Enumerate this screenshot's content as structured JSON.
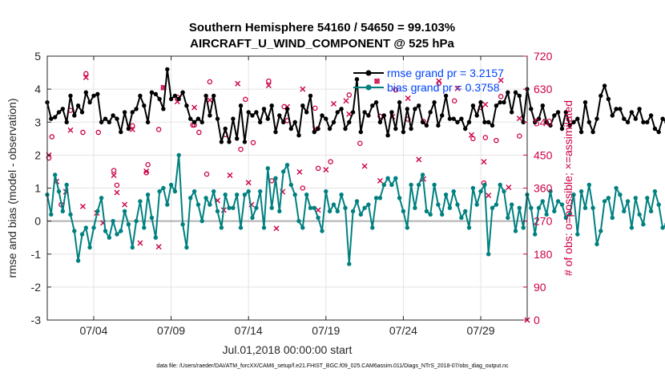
{
  "chart_data": {
    "type": "line",
    "title_line1": "Southern Hemisphere 54160 / 54650 = 99.103%",
    "title_line2": "AIRCRAFT_U_WIND_COMPONENT @ 525 hPa",
    "ylabel": "rmse and bias (model - observation)",
    "ylabel_right": "# of obs: o=possible; ×=assimilated",
    "xlabel": "Jul.01,2018 00:00:00 start",
    "footer": "data file: /Users/raeder/DAI/ATM_forcXX/CAM6_setup/f.e21.FHIST_BGC.f09_025.CAM6assim.011/Diags_NTrS_2018-07/obs_diag_output.nc",
    "xlim": [
      1.0,
      32.0
    ],
    "ylim": [
      -3,
      5
    ],
    "ylim_right": [
      0,
      720
    ],
    "xticks": [
      4,
      9,
      14,
      19,
      24,
      29
    ],
    "xtick_labels": [
      "07/04",
      "07/09",
      "07/14",
      "07/19",
      "07/24",
      "07/29"
    ],
    "yticks": [
      -3,
      -2,
      -1,
      0,
      1,
      2,
      3,
      4,
      5
    ],
    "ytick_labels": [
      "-3",
      "-2",
      "-1",
      "0",
      "1",
      "2",
      "3",
      "4",
      "5"
    ],
    "yticks_right": [
      0,
      90,
      180,
      270,
      360,
      450,
      540,
      630,
      720
    ],
    "ytick_right_labels": [
      "0",
      "90",
      "180",
      "270",
      "360",
      "450",
      "540",
      "630",
      "720"
    ],
    "colors": {
      "rmse": "#000000",
      "bias": "#008080",
      "obs": "#cc0044",
      "zero": "#b0b0b0",
      "legend_text": "#0044ff"
    },
    "x_start": 1.0,
    "x_step": 0.25,
    "series": [
      {
        "name": "rmse grand pr = 3.2157",
        "values": [
          3.6,
          3.1,
          3.15,
          3.3,
          3.4,
          3.0,
          3.8,
          3.2,
          3.5,
          3.3,
          3.9,
          3.6,
          3.8,
          3.85,
          3.0,
          3.1,
          3.0,
          3.2,
          3.1,
          2.7,
          3.3,
          2.8,
          3.3,
          3.4,
          3.8,
          3.5,
          3.0,
          3.9,
          3.85,
          3.7,
          3.4,
          4.6,
          3.7,
          3.8,
          3.7,
          3.9,
          3.5,
          3.1,
          3.0,
          3.1,
          3.0,
          3.8,
          3.2,
          3.8,
          3.1,
          2.4,
          2.8,
          2.4,
          3.1,
          2.5,
          3.5,
          2.4,
          3.3,
          3.2,
          3.3,
          3.0,
          3.4,
          3.1,
          3.5,
          2.7,
          3.2,
          3.0,
          3.4,
          2.8,
          3.0,
          2.6,
          3.5,
          3.3,
          3.8,
          2.7,
          2.8,
          3.2,
          3.1,
          2.8,
          3.0,
          3.3,
          3.4,
          2.8,
          3.0,
          3.3,
          4.3,
          2.7,
          3.3,
          3.2,
          3.5,
          3.6,
          3.0,
          3.2,
          2.6,
          3.3,
          2.8,
          3.6,
          2.7,
          3.4,
          2.8,
          3.4,
          3.5,
          3.0,
          2.9,
          3.3,
          3.6,
          2.9,
          3.2,
          3.8,
          3.1,
          3.1,
          3.0,
          3.1,
          2.8,
          3.0,
          3.5,
          3.2,
          3.6,
          3.0,
          3.0,
          2.9,
          3.5,
          3.6,
          3.6,
          3.9,
          3.3,
          3.9,
          3.8,
          3.0,
          4.0,
          3.4,
          3.0,
          3.1,
          3.5,
          3.0,
          2.9,
          3.2,
          3.3,
          2.8,
          3.3,
          2.9,
          3.0,
          3.1,
          2.7,
          3.6,
          3.0,
          2.7,
          3.1,
          3.8,
          4.1,
          3.7,
          3.2,
          3.4,
          3.4,
          3.1,
          3.0,
          3.3,
          3.1,
          3.4,
          3.0,
          3.0,
          3.2,
          2.8,
          2.7,
          3.1,
          3.0,
          3.3,
          3.4
        ],
        "color": "#000000"
      },
      {
        "name": "bias grand pr = 0.3758",
        "values": [
          0.8,
          0.2,
          1.4,
          0.9,
          0.3,
          1.1,
          0.2,
          -0.3,
          -1.2,
          -0.4,
          -0.2,
          -0.8,
          -0.2,
          0.3,
          0.7,
          -0.3,
          -0.5,
          0.0,
          -0.4,
          -0.3,
          0.3,
          -0.1,
          -0.8,
          0.0,
          0.6,
          -0.2,
          0.8,
          0.1,
          -0.5,
          0.9,
          1.0,
          0.5,
          1.1,
          0.9,
          2.0,
          -0.1,
          -0.8,
          0.7,
          0.9,
          0.5,
          0.0,
          0.7,
          0.5,
          0.9,
          0.3,
          -0.2,
          0.8,
          0.4,
          0.4,
          0.8,
          -0.2,
          0.8,
          0.9,
          0.1,
          0.4,
          0.9,
          -0.2,
          1.6,
          0.4,
          1.3,
          0.3,
          1.5,
          1.7,
          1.1,
          0.8,
          0.0,
          -0.2,
          0.8,
          0.4,
          0.4,
          0.1,
          -0.3,
          0.9,
          0.3,
          0.5,
          0.3,
          0.8,
          0.4,
          -1.3,
          0.3,
          0.6,
          0.2,
          0.4,
          0.5,
          -0.2,
          0.7,
          0.7,
          1.1,
          1.3,
          1.1,
          1.3,
          0.7,
          0.3,
          -0.2,
          1.1,
          0.4,
          1.1,
          1.4,
          0.3,
          0.2,
          1.1,
          0.5,
          0.2,
          0.8,
          0.4,
          0.9,
          0.5,
          0.1,
          0.3,
          -0.2,
          1.0,
          0.5,
          0.9,
          1.1,
          -1.0,
          0.4,
          0.5,
          1.1,
          0.9,
          0.1,
          0.5,
          -0.3,
          0.4,
          -0.2,
          0.8,
          0.4,
          -0.4,
          0.4,
          0.6,
          0.2,
          0.9,
          0.3,
          0.6,
          0.5,
          0.1,
          0.2,
          0.8,
          -0.4,
          0.9,
          0.4,
          1.1,
          0.4,
          -0.7,
          -0.3,
          0.6,
          0.7,
          0.1,
          1.0,
          0.8,
          0.3,
          0.6,
          -0.2,
          0.7,
          0.2,
          -0.1,
          0.7,
          0.3,
          0.9,
          0.5,
          -0.2,
          -0.1,
          -0.2,
          -0.1,
          0.3
        ],
        "color": "#008080"
      }
    ],
    "obs_possible": [
      [
        1.1,
        442
      ],
      [
        1.3,
        500
      ],
      [
        1.9,
        315
      ],
      [
        2.5,
        572
      ],
      [
        3.3,
        512
      ],
      [
        3.5,
        672
      ],
      [
        4.3,
        512
      ],
      [
        5.3,
        408
      ],
      [
        5.5,
        368
      ],
      [
        6.5,
        530
      ],
      [
        7.4,
        402
      ],
      [
        7.5,
        424
      ],
      [
        8.2,
        520
      ],
      [
        8.5,
        634
      ],
      [
        9.4,
        608
      ],
      [
        10.4,
        532
      ],
      [
        10.5,
        532
      ],
      [
        10.8,
        512
      ],
      [
        11.3,
        398
      ],
      [
        11.5,
        650
      ],
      [
        12.5,
        506
      ],
      [
        13.5,
        466
      ],
      [
        13.8,
        602
      ],
      [
        14.3,
        484
      ],
      [
        15.3,
        652
      ],
      [
        15.5,
        380
      ],
      [
        16.3,
        582
      ],
      [
        16.5,
        544
      ],
      [
        17.5,
        360
      ],
      [
        18.3,
        578
      ],
      [
        18.5,
        414
      ],
      [
        19.3,
        432
      ],
      [
        20.5,
        614
      ],
      [
        21.2,
        482
      ],
      [
        22.3,
        652
      ],
      [
        22.5,
        556
      ],
      [
        23.5,
        628
      ],
      [
        24.3,
        548
      ],
      [
        25.3,
        542
      ],
      [
        26.3,
        646
      ],
      [
        27.3,
        598
      ],
      [
        28.5,
        495
      ],
      [
        29.0,
        580
      ],
      [
        29.2,
        374
      ],
      [
        29.3,
        498
      ],
      [
        30.0,
        490
      ],
      [
        30.3,
        610
      ],
      [
        31.5,
        502
      ]
    ],
    "obs_assimilated": [
      [
        1.1,
        450
      ],
      [
        1.6,
        378
      ],
      [
        2.2,
        350
      ],
      [
        2.5,
        518
      ],
      [
        3.3,
        310
      ],
      [
        3.5,
        662
      ],
      [
        4.2,
        292
      ],
      [
        4.6,
        265
      ],
      [
        5.3,
        395
      ],
      [
        5.5,
        348
      ],
      [
        6.0,
        315
      ],
      [
        6.5,
        520
      ],
      [
        7.0,
        210
      ],
      [
        7.4,
        406
      ],
      [
        8.2,
        200
      ],
      [
        8.5,
        634
      ],
      [
        9.4,
        596
      ],
      [
        10.5,
        580
      ],
      [
        11.5,
        600
      ],
      [
        12.0,
        326
      ],
      [
        12.4,
        300
      ],
      [
        12.8,
        395
      ],
      [
        13.3,
        645
      ],
      [
        14.0,
        375
      ],
      [
        14.2,
        315
      ],
      [
        15.3,
        640
      ],
      [
        15.8,
        250
      ],
      [
        16.2,
        350
      ],
      [
        16.5,
        582
      ],
      [
        17.3,
        404
      ],
      [
        17.5,
        630
      ],
      [
        18.3,
        522
      ],
      [
        18.5,
        300
      ],
      [
        19.0,
        410
      ],
      [
        19.5,
        590
      ],
      [
        20.3,
        598
      ],
      [
        20.5,
        562
      ],
      [
        21.5,
        420
      ],
      [
        22.3,
        652
      ],
      [
        22.5,
        380
      ],
      [
        23.3,
        555
      ],
      [
        24.3,
        605
      ],
      [
        25.0,
        438
      ],
      [
        25.3,
        385
      ],
      [
        26.3,
        652
      ],
      [
        27.5,
        632
      ],
      [
        28.4,
        505
      ],
      [
        29.2,
        432
      ],
      [
        29.3,
        588
      ],
      [
        29.5,
        340
      ],
      [
        30.3,
        654
      ],
      [
        30.8,
        362
      ],
      [
        31.5,
        550
      ],
      [
        32.0,
        0
      ]
    ]
  }
}
